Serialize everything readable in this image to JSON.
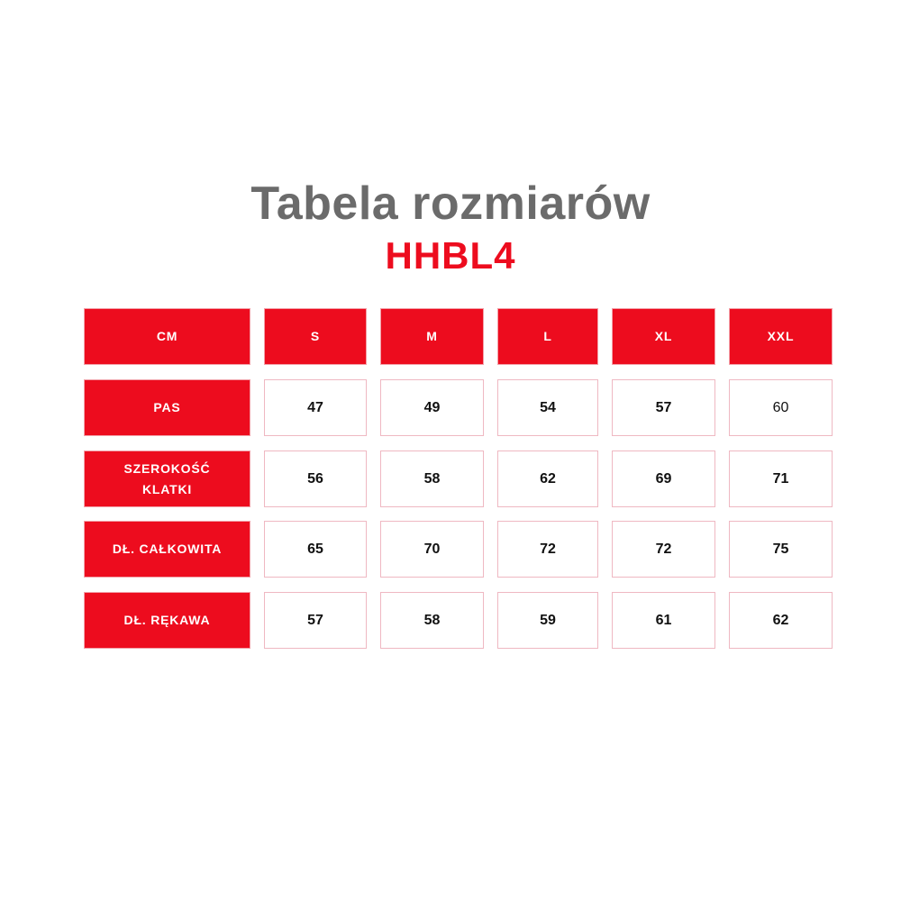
{
  "title": "Tabela rozmiarów",
  "model": "HHBL4",
  "colors": {
    "accent": "#ED0C1E",
    "title": "#6B6B6B",
    "cell_border": "#EFB8C2"
  },
  "table": {
    "corner": "CM",
    "sizes": [
      "S",
      "M",
      "L",
      "XL",
      "XXL"
    ],
    "rows": [
      {
        "label": "PAS",
        "values": [
          "47",
          "49",
          "54",
          "57",
          "60"
        ]
      },
      {
        "label": "SZEROKOŚĆ KLATKI",
        "values": [
          "56",
          "58",
          "62",
          "69",
          "71"
        ]
      },
      {
        "label": "DŁ. CAŁKOWITA",
        "values": [
          "65",
          "70",
          "72",
          "72",
          "75"
        ]
      },
      {
        "label": "DŁ. RĘKAWA",
        "values": [
          "57",
          "58",
          "59",
          "61",
          "62"
        ]
      }
    ]
  }
}
